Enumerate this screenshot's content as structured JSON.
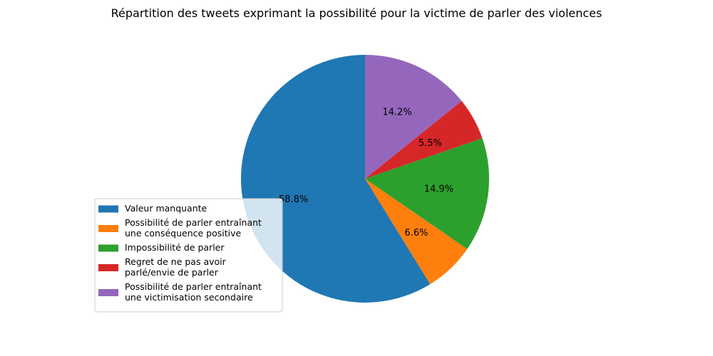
{
  "chart_data": {
    "type": "pie",
    "title": "Répartition des tweets exprimant la possibilité pour la victime de parler des violences",
    "start_angle_deg": 90,
    "direction": "counterclockwise",
    "legend_placement": "lower-left",
    "slices": [
      {
        "label": [
          "Valeur manquante"
        ],
        "value": 58.8,
        "pct_label": "58.8%",
        "color": "#1f77b4"
      },
      {
        "label": [
          "Possibilité de parler entraînant",
          "une conséquence positive"
        ],
        "value": 6.6,
        "pct_label": "6.6%",
        "color": "#ff7f0e"
      },
      {
        "label": [
          "Impossibilité de parler"
        ],
        "value": 14.9,
        "pct_label": "14.9%",
        "color": "#2ca02c"
      },
      {
        "label": [
          "Regret de ne pas avoir",
          "parlé/envie de parler"
        ],
        "value": 5.5,
        "pct_label": "5.5%",
        "color": "#d62728"
      },
      {
        "label": [
          "Possibilité de parler entraînant",
          "une victimisation secondaire"
        ],
        "value": 14.2,
        "pct_label": "14.2%",
        "color": "#9467bd"
      }
    ]
  }
}
